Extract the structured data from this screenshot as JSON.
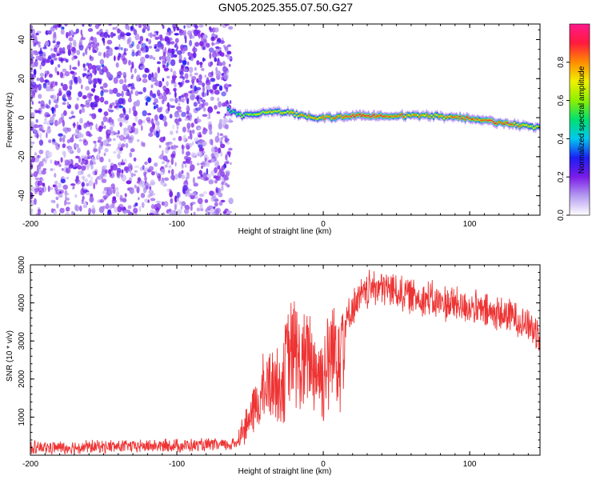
{
  "title": "GN05.2025.355.07.50.G27",
  "chart_data": [
    {
      "type": "heatmap",
      "xlabel": "Height of straight line (km)",
      "ylabel": "Frequency (Hz)",
      "xlim": [
        -200,
        148
      ],
      "ylim": [
        -50,
        48
      ],
      "x_ticks": [
        -200,
        -100,
        0,
        100
      ],
      "y_ticks": [
        -40,
        -20,
        0,
        20,
        40
      ],
      "colorbar": {
        "label": "Normalized spectral amplitude",
        "range": [
          0,
          1
        ],
        "ticks": [
          0.0,
          0.2,
          0.4,
          0.6,
          0.8
        ],
        "tick_labels": [
          "0.0",
          "0.2",
          "0.4",
          "0.6",
          "0.8"
        ],
        "colors": [
          "#ffffff",
          "#b59cf0",
          "#7b1ce8",
          "#1d1df5",
          "#00c8f0",
          "#00e070",
          "#8cf000",
          "#f0f000",
          "#ff8c00",
          "#ff1a3c",
          "#ff1a8c"
        ]
      },
      "noise_region": {
        "x_range": [
          -200,
          -63
        ],
        "y_range": [
          -50,
          48
        ],
        "typical_amplitude": 0.12
      },
      "signal_ridge": {
        "x": [
          -65,
          -55,
          -45,
          -35,
          -25,
          -15,
          -5,
          5,
          15,
          25,
          35,
          45,
          55,
          65,
          75,
          85,
          95,
          105,
          115,
          125,
          135,
          148
        ],
        "y": [
          4,
          1,
          2,
          3,
          3,
          1,
          0,
          0,
          1,
          1,
          1,
          1,
          1,
          1,
          1,
          0,
          0,
          -1,
          -2,
          -3,
          -4,
          -5
        ],
        "amplitude": [
          0.45,
          0.6,
          0.65,
          0.7,
          0.75,
          0.75,
          0.75,
          0.8,
          0.85,
          0.9,
          0.9,
          0.85,
          0.8,
          0.75,
          0.75,
          0.8,
          0.85,
          0.8,
          0.9,
          0.85,
          0.75,
          0.7
        ]
      }
    },
    {
      "type": "line",
      "xlabel": "Height of straight line (km)",
      "ylabel": "SNR (10 * v/v)",
      "xlim": [
        -200,
        148
      ],
      "ylim": [
        0,
        5000
      ],
      "x_ticks": [
        -200,
        -100,
        0,
        100
      ],
      "y_ticks": [
        1000,
        2000,
        3000,
        4000,
        5000
      ],
      "line_color": "#ee3333",
      "series": [
        {
          "x": [
            -200,
            -180,
            -160,
            -140,
            -120,
            -100,
            -80,
            -65,
            -60,
            -55,
            -50,
            -45,
            -40,
            -35,
            -30,
            -25,
            -20,
            -15,
            -10,
            -5,
            0,
            5,
            10,
            15,
            20,
            25,
            30,
            35,
            40,
            50,
            60,
            70,
            80,
            90,
            100,
            110,
            120,
            130,
            140,
            148
          ],
          "y": [
            200,
            200,
            220,
            230,
            240,
            250,
            260,
            270,
            300,
            650,
            1000,
            1300,
            1700,
            2000,
            1800,
            2400,
            2800,
            2200,
            2600,
            2300,
            2100,
            2600,
            3000,
            3400,
            3900,
            4100,
            4300,
            4450,
            4400,
            4300,
            4200,
            4100,
            4000,
            3950,
            3900,
            3750,
            3700,
            3650,
            3400,
            3200
          ]
        }
      ]
    }
  ]
}
